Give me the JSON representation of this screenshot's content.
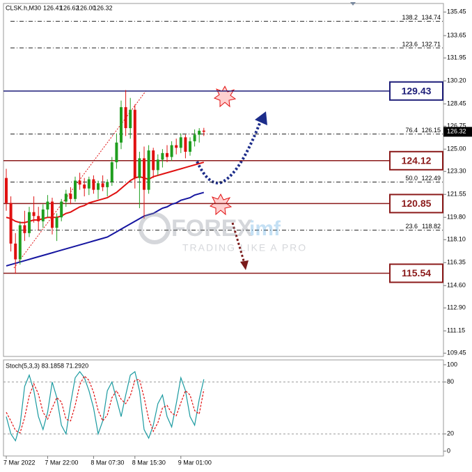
{
  "chart_data": [
    {
      "type": "candlestick",
      "title": "CLSK.h,M30",
      "title_values": [
        "126.41",
        "126.62",
        "126.00",
        "126.32"
      ],
      "categories": [
        "7 Mar 2022",
        null,
        null,
        null,
        null,
        null,
        null,
        null,
        null,
        "7 Mar 22:00",
        null,
        null,
        null,
        null,
        null,
        null,
        null,
        null,
        null,
        "8 Mar 07:30",
        null,
        null,
        null,
        null,
        null,
        null,
        null,
        null,
        "8 Mar 15:30",
        null,
        null,
        null,
        null,
        null,
        null,
        null,
        null,
        null,
        "9 Mar 01:00",
        null,
        null,
        null,
        null,
        null
      ],
      "open": [
        122.8,
        120.9,
        117.8,
        116.6,
        119.2,
        118.6,
        120.2,
        119.9,
        119.5,
        120.4,
        121.0,
        119.0,
        119.8,
        121.0,
        121.6,
        121.2,
        122.6,
        122.3,
        122.0,
        122.7,
        121.9,
        122.4,
        122.1,
        122.5,
        124.0,
        125.5,
        128.2,
        126.6,
        128.0,
        122.8,
        124.3,
        121.9,
        124.9,
        123.4,
        124.2,
        124.7,
        124.4,
        125.3,
        125.1,
        125.9,
        124.8,
        125.6,
        126.1,
        126.41
      ],
      "high": [
        123.5,
        121.4,
        118.6,
        119.5,
        120.3,
        120.6,
        121.4,
        120.6,
        120.8,
        121.5,
        121.3,
        120.1,
        121.2,
        121.9,
        122.1,
        122.9,
        123.2,
        122.8,
        122.9,
        123.0,
        122.6,
        123.0,
        122.7,
        124.4,
        126.2,
        128.7,
        129.5,
        128.9,
        128.4,
        124.8,
        125.2,
        125.3,
        125.1,
        124.6,
        125.0,
        125.3,
        125.6,
        125.8,
        126.2,
        126.1,
        125.9,
        126.5,
        126.6,
        126.62
      ],
      "low": [
        120.3,
        117.2,
        115.5,
        116.2,
        118.0,
        118.3,
        119.4,
        118.8,
        119.0,
        119.8,
        118.5,
        118.0,
        119.5,
        120.6,
        120.8,
        121.0,
        121.9,
        121.4,
        121.5,
        121.6,
        121.2,
        121.8,
        121.4,
        122.2,
        123.5,
        125.0,
        126.0,
        125.8,
        122.0,
        120.5,
        119.7,
        121.6,
        122.8,
        123.0,
        123.6,
        124.0,
        124.1,
        124.6,
        124.7,
        124.3,
        124.5,
        125.2,
        125.5,
        126.0
      ],
      "close": [
        120.9,
        117.8,
        116.6,
        119.2,
        118.6,
        120.2,
        119.9,
        119.5,
        120.4,
        121.0,
        119.0,
        119.8,
        121.0,
        121.6,
        121.2,
        122.6,
        122.3,
        122.0,
        122.7,
        121.9,
        122.4,
        122.1,
        122.5,
        124.0,
        125.5,
        128.2,
        126.6,
        128.0,
        122.8,
        124.3,
        121.9,
        124.9,
        123.4,
        124.2,
        124.7,
        124.4,
        125.3,
        125.1,
        125.9,
        124.8,
        125.6,
        126.1,
        126.4,
        126.32
      ],
      "up_color": "#1f9e1f",
      "down_color": "#e01010",
      "overlays": [
        {
          "color": "#e01010",
          "values": [
            119.8,
            119.7,
            119.5,
            119.4,
            119.4,
            119.5,
            119.6,
            119.6,
            119.7,
            119.8,
            119.8,
            119.8,
            119.9,
            120.1,
            120.2,
            120.4,
            120.6,
            120.7,
            120.9,
            121.0,
            121.1,
            121.2,
            121.3,
            121.5,
            121.7,
            122.0,
            122.3,
            122.6,
            122.8,
            122.9,
            122.8,
            122.7,
            122.9,
            123.0,
            123.1,
            123.2,
            123.3,
            123.4,
            123.5,
            123.6,
            123.7,
            123.8,
            123.9,
            124.0
          ]
        },
        {
          "color": "#1515a0",
          "values": [
            116.1,
            116.2,
            116.3,
            116.4,
            116.5,
            116.6,
            116.7,
            116.8,
            116.9,
            117.0,
            117.1,
            117.2,
            117.3,
            117.4,
            117.5,
            117.6,
            117.7,
            117.8,
            117.9,
            118.0,
            118.1,
            118.2,
            118.3,
            118.5,
            118.7,
            118.9,
            119.1,
            119.3,
            119.5,
            119.7,
            119.9,
            120.0,
            120.1,
            120.3,
            120.5,
            120.6,
            120.8,
            120.9,
            121.1,
            121.2,
            121.3,
            121.5,
            121.6,
            121.7
          ]
        }
      ],
      "levels": [
        {
          "value": 129.43,
          "color": "#1c1c78"
        },
        {
          "value": 124.12,
          "color": "#8b1a1a"
        },
        {
          "value": 120.85,
          "color": "#8b1a1a"
        },
        {
          "value": 115.54,
          "color": "#8b1a1a"
        }
      ],
      "fib_levels": [
        {
          "level": "138.2",
          "value": 134.74
        },
        {
          "level": "123.6",
          "value": 132.71
        },
        {
          "level": "76.4",
          "value": 126.15
        },
        {
          "level": "50.0",
          "value": 122.49
        },
        {
          "level": "23.6",
          "value": 118.82
        }
      ],
      "last_price": 126.32,
      "watermark": {
        "brand": "FOREX",
        "brand_suffix": "imf",
        "tagline": "TRADING LIKE A PRO"
      },
      "ylim": [
        109.2,
        136.1
      ],
      "yticks": [
        135.45,
        133.65,
        131.95,
        {
          "value": 130.2,
          "label": "130.20"
        },
        128.45,
        126.75,
        {
          "value": 125,
          "label": "125.00"
        },
        {
          "value": 123.3,
          "label": "123.30"
        },
        121.55,
        {
          "value": 119.8,
          "label": "119.80"
        },
        {
          "value": 118.1,
          "label": "118.10"
        },
        116.35,
        {
          "value": 114.6,
          "label": "114.60"
        },
        {
          "value": 112.9,
          "label": "112.90"
        },
        111.15,
        109.45
      ]
    },
    {
      "type": "line",
      "title": "Stoch(5,3,3) 83.1858 71.2920",
      "series": [
        {
          "color": "#1a9aa0",
          "dash": false,
          "values": [
            40,
            20,
            12,
            30,
            75,
            88,
            70,
            40,
            25,
            45,
            80,
            62,
            30,
            20,
            55,
            85,
            92,
            85,
            70,
            50,
            20,
            35,
            70,
            80,
            60,
            40,
            65,
            88,
            92,
            70,
            25,
            15,
            30,
            55,
            65,
            40,
            28,
            55,
            85,
            70,
            40,
            30,
            60,
            83.19
          ]
        },
        {
          "color": "#e01010",
          "dash": true,
          "values": [
            45,
            35,
            24,
            21,
            39,
            64,
            78,
            66,
            45,
            37,
            50,
            62,
            57,
            37,
            35,
            53,
            77,
            87,
            82,
            68,
            47,
            35,
            42,
            62,
            70,
            60,
            55,
            64,
            82,
            83,
            62,
            37,
            23,
            33,
            50,
            53,
            44,
            41,
            56,
            70,
            65,
            47,
            43,
            71.29
          ]
        }
      ],
      "ylim": [
        -5.6,
        105.6
      ],
      "yticks": [
        0,
        20,
        80,
        100
      ]
    }
  ]
}
